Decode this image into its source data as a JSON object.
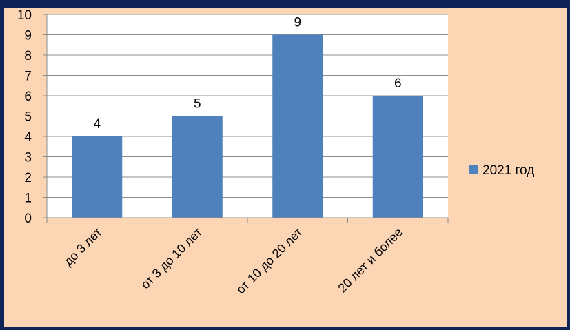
{
  "chart_data": {
    "type": "bar",
    "categories": [
      "до 3 лет",
      "от 3 до 10  лет",
      "от 10 до 20 лет",
      "20 лет и более"
    ],
    "series": [
      {
        "name": "2021 год",
        "values": [
          4,
          5,
          9,
          6
        ],
        "color": "#4f81bd"
      }
    ],
    "data_labels": [
      "4",
      "5",
      "9",
      "6"
    ],
    "y_ticks": [
      "0",
      "1",
      "2",
      "3",
      "4",
      "5",
      "6",
      "7",
      "8",
      "9",
      "10"
    ],
    "ylim": [
      0,
      10
    ],
    "grid": true,
    "legend_position": "right",
    "plot_background": "#ffffff",
    "page_background": "#fcd5b5",
    "frame_color": "#0f2357"
  }
}
